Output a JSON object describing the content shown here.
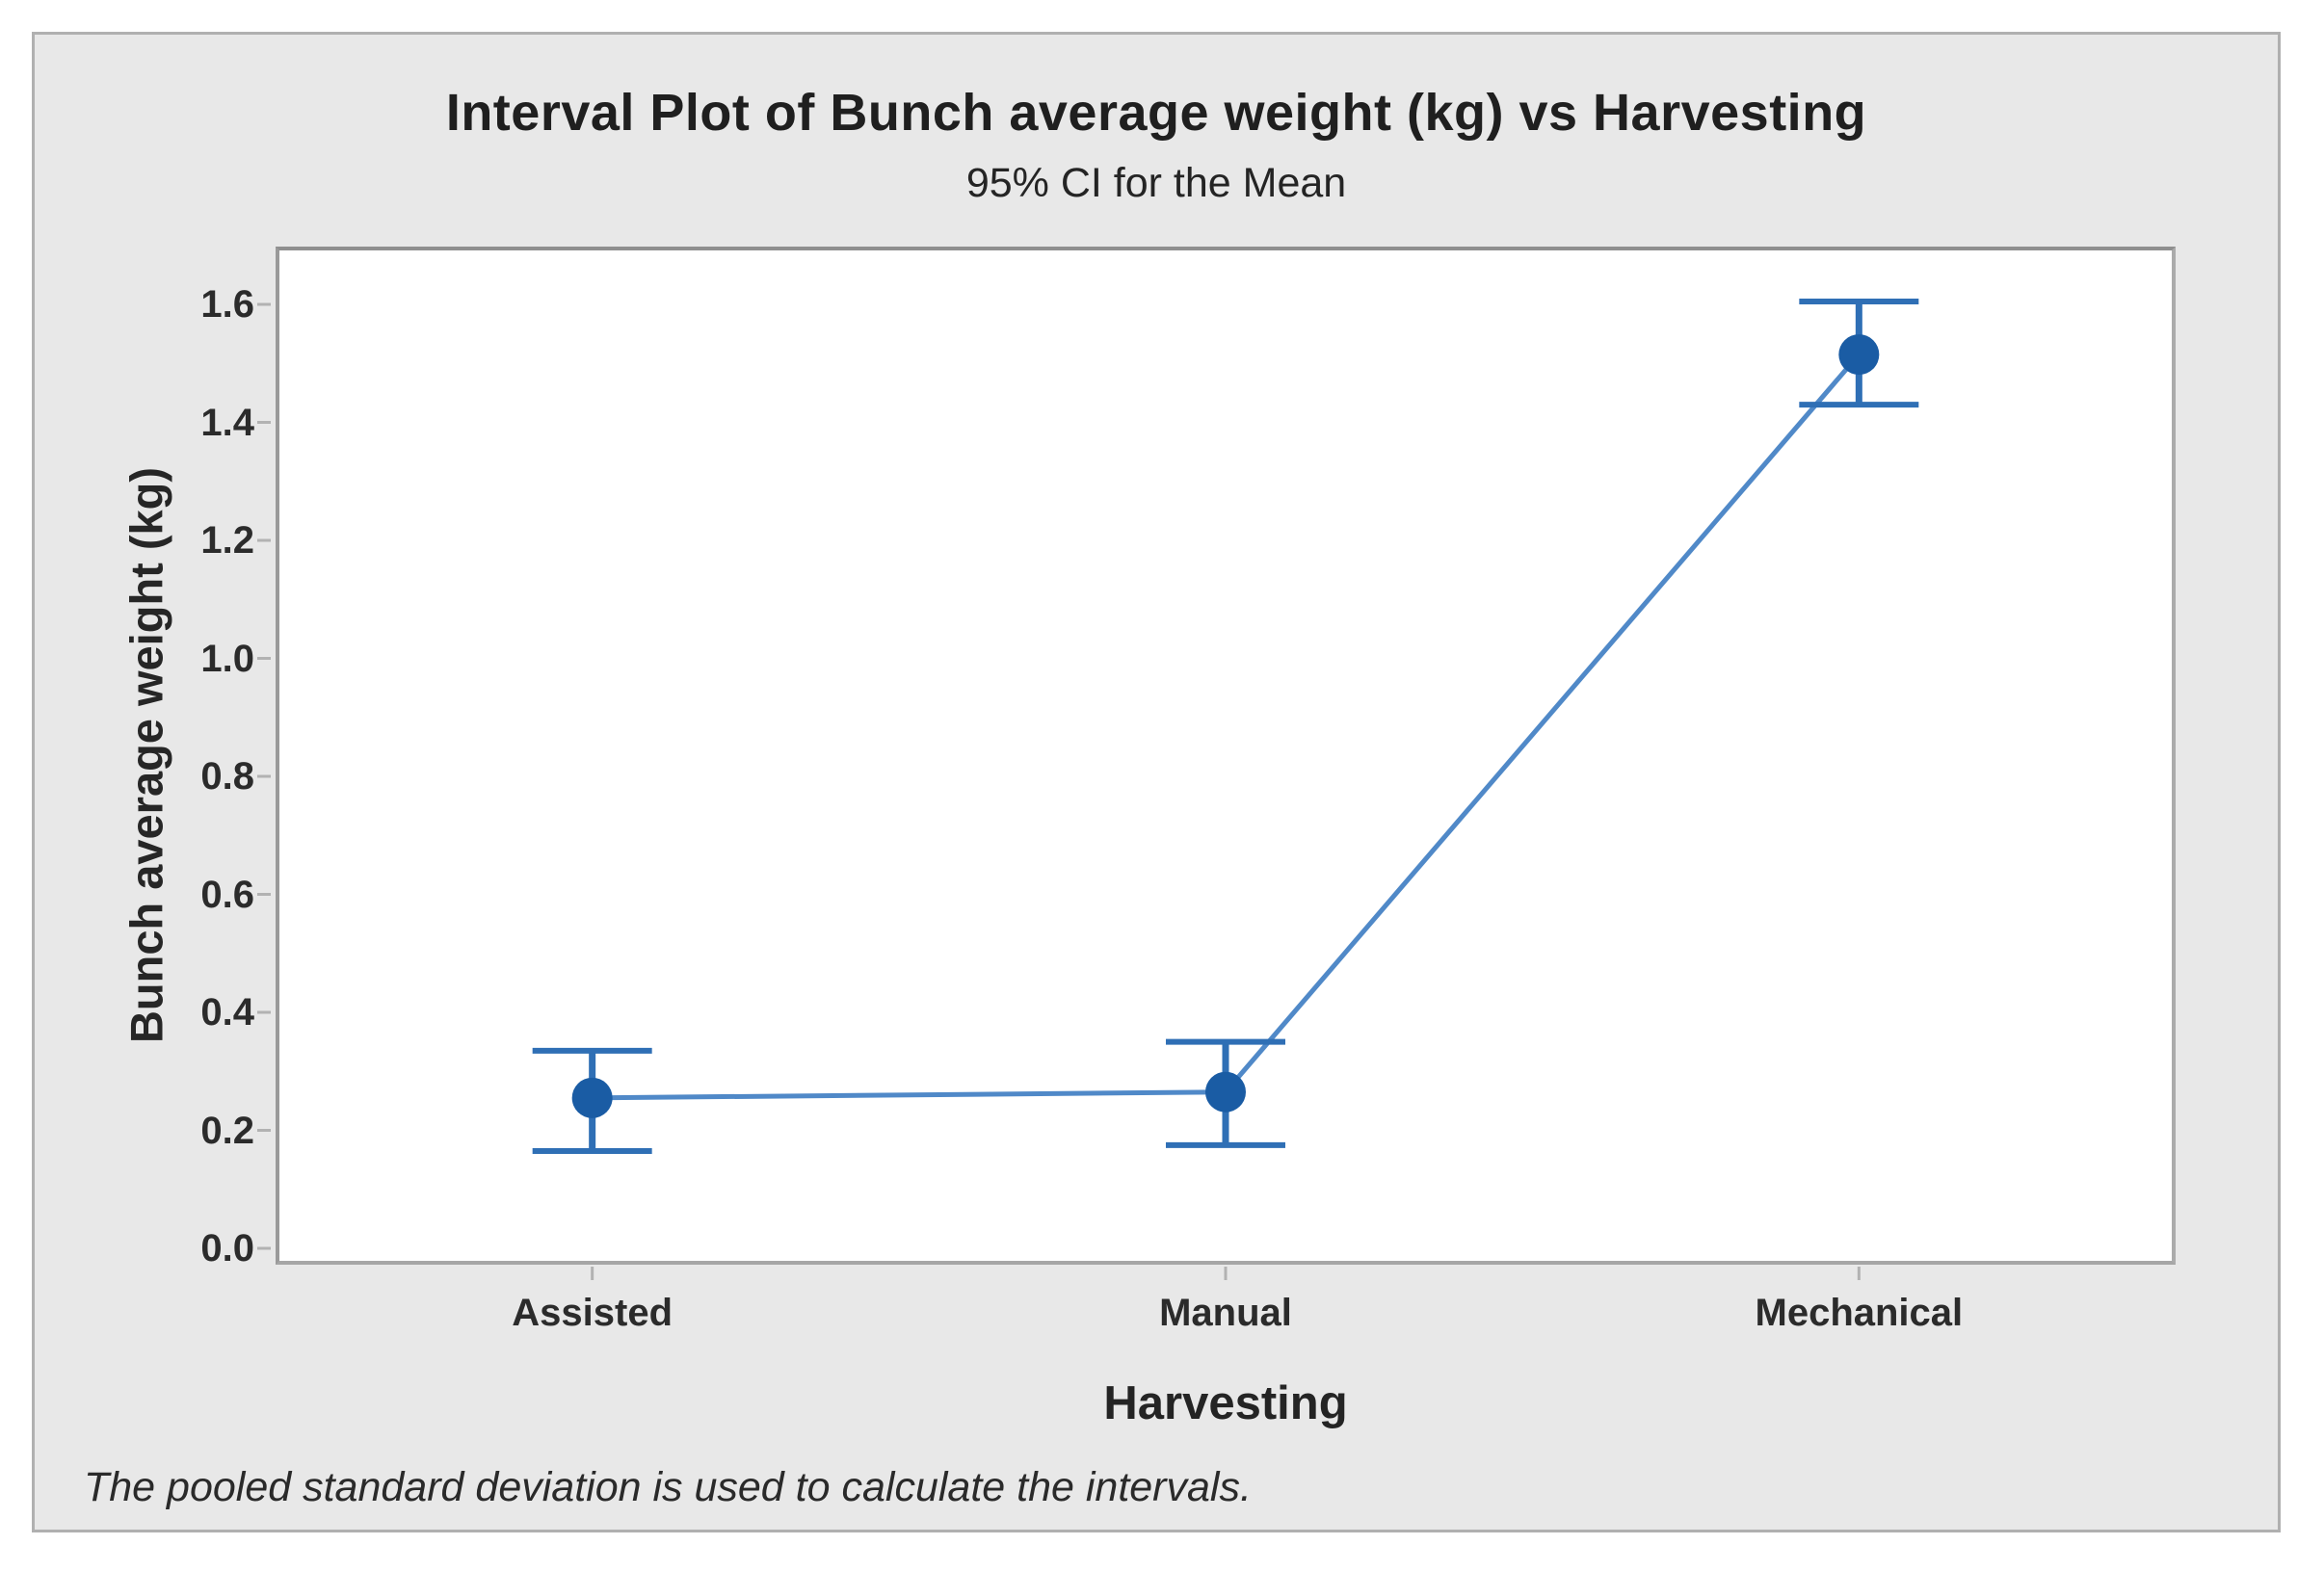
{
  "chart_data": {
    "type": "interval",
    "title": "Interval Plot of Bunch average weight (kg) vs Harvesting",
    "subtitle": "95% CI for the Mean",
    "xlabel": "Harvesting",
    "ylabel": "Bunch average weight (kg)",
    "categories": [
      "Assisted",
      "Manual",
      "Mechanical"
    ],
    "means": [
      0.255,
      0.265,
      1.515
    ],
    "ci_low": [
      0.165,
      0.175,
      1.43
    ],
    "ci_high": [
      0.335,
      0.35,
      1.605
    ],
    "ylim": [
      0.0,
      1.6
    ],
    "yticks": [
      "0.0",
      "0.2",
      "0.4",
      "0.6",
      "0.8",
      "1.0",
      "1.2",
      "1.4",
      "1.6"
    ],
    "grid": false,
    "legend": "none",
    "footnote": "The pooled standard deviation is used to calculate the intervals.",
    "colors": {
      "marker": "#1a5ca4",
      "interval": "#2f6fb5",
      "connector": "#5089c8",
      "tick": "#b2b2b2",
      "plot_border": "#9a9a9a",
      "panel_bg": "#e8e8e8",
      "text": "#242424"
    }
  }
}
